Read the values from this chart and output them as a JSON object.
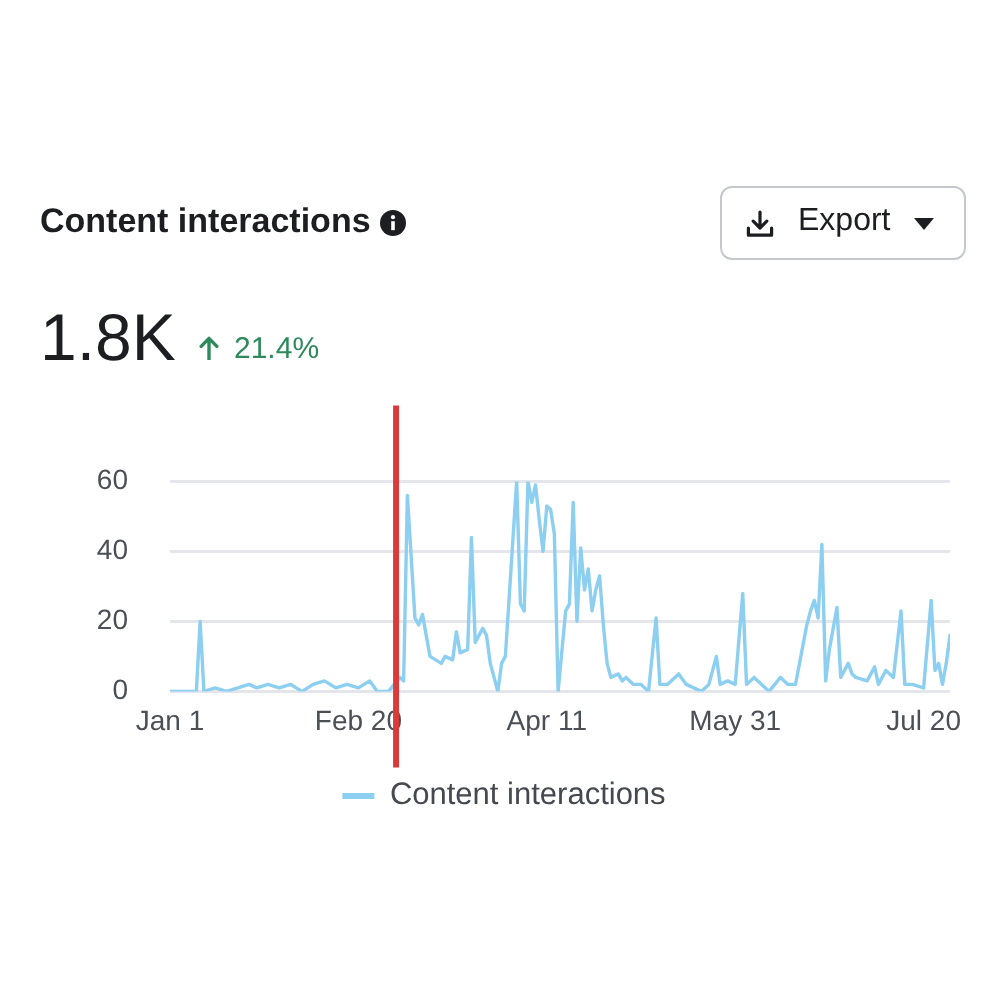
{
  "chart_data": {
    "type": "line",
    "title": "Content interactions",
    "annotations": [
      "1.8K",
      "21.4%",
      "Export"
    ],
    "x": [
      "--01-01",
      "--01-08",
      "--01-09",
      "--01-10",
      "--01-13",
      "--01-16",
      "--01-19",
      "--01-22",
      "--01-24",
      "--01-27",
      "--01-30",
      "--02-02",
      "--02-05",
      "--02-08",
      "--02-11",
      "--02-14",
      "--02-17",
      "--02-20",
      "--02-23",
      "--02-25",
      "--02-28",
      "--03-03",
      "--03-04",
      "--03-05",
      "--03-07",
      "--03-08",
      "--03-09",
      "--03-10",
      "--03-11",
      "--03-14",
      "--03-15",
      "--03-17",
      "--03-18",
      "--03-19",
      "--03-21",
      "--03-22",
      "--03-23",
      "--03-25",
      "--03-26",
      "--03-27",
      "--03-29",
      "--03-30",
      "--03-31",
      "--04-03",
      "--04-04",
      "--04-05",
      "--04-06",
      "--04-07",
      "--04-08",
      "--04-09",
      "--04-10",
      "--04-11",
      "--04-12",
      "--04-13",
      "--04-14",
      "--04-16",
      "--04-17",
      "--04-18",
      "--04-19",
      "--04-20",
      "--04-21",
      "--04-22",
      "--04-23",
      "--04-24",
      "--04-25",
      "--04-26",
      "--04-27",
      "--04-28",
      "--04-30",
      "--05-01",
      "--05-02",
      "--05-04",
      "--05-06",
      "--05-08",
      "--05-10",
      "--05-11",
      "--05-13",
      "--05-16",
      "--05-18",
      "--05-22",
      "--05-24",
      "--05-26",
      "--05-27",
      "--05-29",
      "--05-31",
      "--06-02",
      "--06-03",
      "--06-05",
      "--06-07",
      "--06-09",
      "--06-12",
      "--06-14",
      "--06-16",
      "--06-19",
      "--06-20",
      "--06-21",
      "--06-22",
      "--06-23",
      "--06-24",
      "--06-25",
      "--06-27",
      "--06-28",
      "--06-30",
      "--07-01",
      "--07-02",
      "--07-05",
      "--07-07",
      "--07-08",
      "--07-10",
      "--07-12",
      "--07-14",
      "--07-15",
      "--07-17",
      "--07-20",
      "--07-22",
      "--07-23",
      "--07-24",
      "--07-25",
      "--07-26",
      "--07-27"
    ],
    "series": [
      {
        "name": "Content interactions",
        "color": "#8ccff0",
        "values": [
          0,
          0,
          20,
          0,
          1,
          0,
          1,
          2,
          1,
          2,
          1,
          2,
          0,
          2,
          3,
          1,
          2,
          1,
          3,
          0,
          0,
          4,
          3,
          56,
          21,
          19,
          22,
          16,
          10,
          8,
          10,
          9,
          17,
          11,
          12,
          44,
          14,
          18,
          16,
          8,
          0,
          8,
          10,
          60,
          25,
          23,
          60,
          54,
          59,
          49,
          40,
          53,
          52,
          45,
          0,
          23,
          25,
          54,
          20,
          41,
          29,
          35,
          23,
          29,
          33,
          19,
          8,
          4,
          5,
          3,
          4,
          2,
          2,
          0,
          21,
          2,
          2,
          5,
          2,
          0,
          2,
          10,
          2,
          3,
          2,
          28,
          2,
          4,
          2,
          0,
          4,
          2,
          2,
          19,
          23,
          26,
          21,
          42,
          3,
          12,
          24,
          4,
          8,
          5,
          4,
          3,
          7,
          2,
          6,
          4,
          23,
          2,
          2,
          1,
          26,
          6,
          8,
          2,
          8,
          16
        ]
      }
    ],
    "xlim": [
      "--01-01",
      "--07-27"
    ],
    "xticks": [
      {
        "value": "--01-01",
        "label": "Jan 1"
      },
      {
        "value": "--02-20",
        "label": "Feb 20"
      },
      {
        "value": "--04-11",
        "label": "Apr 11"
      },
      {
        "value": "--05-31",
        "label": "May 31"
      },
      {
        "value": "--07-20",
        "label": "Jul 20"
      }
    ],
    "ylim": [
      0,
      60
    ],
    "yticks": [
      0,
      20,
      40,
      60
    ],
    "ref_lines": [
      {
        "axis": "x",
        "value": "--03-02",
        "color": "#d93a3a"
      }
    ],
    "grid": "y",
    "legend": "bottom"
  }
}
